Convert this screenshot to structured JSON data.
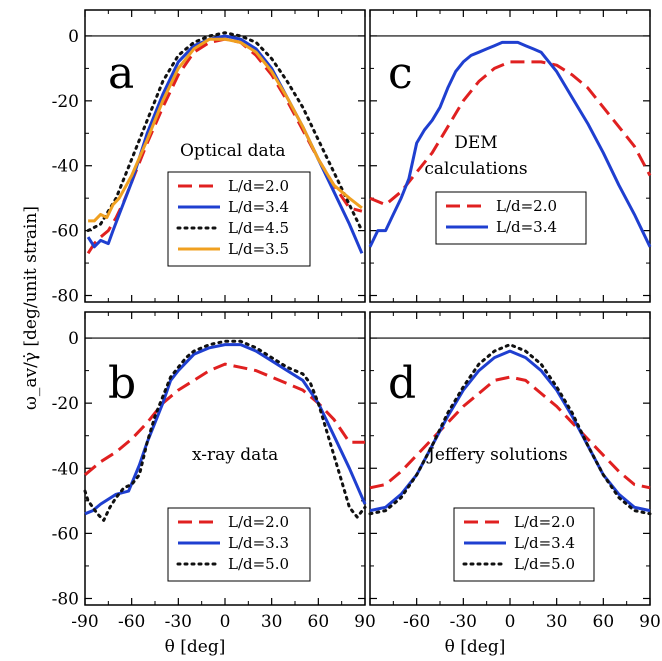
{
  "figure": {
    "ylabel": "ω_av/γ̇ [deg/unit strain]",
    "xlabel": "θ [deg]"
  },
  "styles": {
    "L/d=2.0": {
      "color": "#e02020",
      "dash": "14,7"
    },
    "L/d=3.4": {
      "color": "#1f3fd0",
      "dash": ""
    },
    "L/d=4.5": {
      "color": "#111111",
      "dash": "2,5"
    },
    "L/d=3.5": {
      "color": "#f0a020",
      "dash": ""
    },
    "L/d=3.3": {
      "color": "#1f3fd0",
      "dash": ""
    },
    "L/d=5.0": {
      "color": "#111111",
      "dash": "2,5"
    }
  },
  "chart_data": [
    {
      "type": "line",
      "panel": "a",
      "annotation": "Optical data",
      "xlim": [
        -90,
        90
      ],
      "ylim": [
        -82,
        8
      ],
      "xticks": [
        -90,
        -60,
        -30,
        0,
        30,
        60,
        90
      ],
      "yticks": [
        0,
        -20,
        -40,
        -60,
        -80
      ],
      "grid": false,
      "legend_position": "bottom-center",
      "series": [
        {
          "name": "L/d=2.0",
          "x": [
            -88,
            -84,
            -80,
            -75,
            -70,
            -65,
            -60,
            -50,
            -40,
            -30,
            -20,
            -10,
            0,
            10,
            20,
            30,
            40,
            50,
            60,
            70,
            80,
            88
          ],
          "y": [
            -67,
            -64,
            -62,
            -60,
            -56,
            -51,
            -45,
            -33,
            -22,
            -12,
            -5,
            -2,
            -1,
            -2,
            -6,
            -12,
            -20,
            -29,
            -38,
            -46,
            -53,
            -54
          ]
        },
        {
          "name": "L/d=3.4",
          "x": [
            -88,
            -84,
            -80,
            -75,
            -72,
            -68,
            -60,
            -50,
            -40,
            -30,
            -20,
            -10,
            0,
            10,
            20,
            30,
            40,
            50,
            60,
            70,
            80,
            88
          ],
          "y": [
            -62,
            -65,
            -63,
            -64,
            -60,
            -55,
            -45,
            -30,
            -18,
            -8,
            -3,
            -1,
            0,
            -1,
            -4,
            -10,
            -19,
            -28,
            -38,
            -48,
            -58,
            -67
          ]
        },
        {
          "name": "L/d=4.5",
          "x": [
            -88,
            -80,
            -70,
            -60,
            -50,
            -40,
            -30,
            -20,
            -10,
            0,
            10,
            20,
            30,
            40,
            50,
            60,
            70,
            80,
            88
          ],
          "y": [
            -60,
            -58,
            -50,
            -38,
            -26,
            -14,
            -6,
            -2,
            0,
            1,
            0,
            -2,
            -7,
            -14,
            -22,
            -32,
            -42,
            -52,
            -60
          ]
        },
        {
          "name": "L/d=3.5",
          "x": [
            -88,
            -84,
            -80,
            -76,
            -72,
            -68,
            -60,
            -50,
            -40,
            -30,
            -20,
            -10,
            0,
            10,
            20,
            30,
            40,
            50,
            60,
            70,
            80,
            88
          ],
          "y": [
            -57,
            -57,
            -55,
            -56,
            -52,
            -50,
            -43,
            -32,
            -20,
            -10,
            -4,
            -1,
            -1,
            -2,
            -5,
            -11,
            -19,
            -28,
            -38,
            -46,
            -50,
            -53
          ]
        }
      ]
    },
    {
      "type": "line",
      "panel": "c",
      "annotation_lines": [
        "DEM",
        "calculations"
      ],
      "xlim": [
        -90,
        90
      ],
      "ylim": [
        -82,
        8
      ],
      "xticks": [
        -90,
        -60,
        -30,
        0,
        30,
        60,
        90
      ],
      "yticks": [
        0,
        -20,
        -40,
        -60,
        -80
      ],
      "grid": false,
      "legend_position": "bottom-center",
      "series": [
        {
          "name": "L/d=2.0",
          "x": [
            -90,
            -80,
            -70,
            -60,
            -50,
            -40,
            -30,
            -20,
            -10,
            0,
            10,
            20,
            30,
            40,
            50,
            60,
            70,
            80,
            90
          ],
          "y": [
            -50,
            -52,
            -48,
            -42,
            -36,
            -28,
            -20,
            -14,
            -10,
            -8,
            -8,
            -8,
            -9,
            -12,
            -16,
            -22,
            -28,
            -34,
            -43
          ]
        },
        {
          "name": "L/d=3.4",
          "x": [
            -90,
            -85,
            -80,
            -75,
            -70,
            -65,
            -60,
            -55,
            -50,
            -45,
            -40,
            -35,
            -30,
            -25,
            -20,
            -15,
            -10,
            -5,
            0,
            5,
            10,
            15,
            20,
            25,
            30,
            40,
            50,
            60,
            70,
            80,
            90
          ],
          "y": [
            -65,
            -60,
            -60,
            -55,
            -50,
            -44,
            -33,
            -29,
            -26,
            -22,
            -16,
            -11,
            -8,
            -6,
            -5,
            -4,
            -3,
            -2,
            -2,
            -2,
            -3,
            -4,
            -5,
            -8,
            -11,
            -19,
            -27,
            -36,
            -46,
            -55,
            -65
          ]
        }
      ]
    },
    {
      "type": "line",
      "panel": "b",
      "annotation": "x-ray data",
      "xlim": [
        -90,
        90
      ],
      "ylim": [
        -82,
        8
      ],
      "xticks": [
        -90,
        -60,
        -30,
        0,
        30,
        60,
        90
      ],
      "yticks": [
        0,
        -20,
        -40,
        -60,
        -80
      ],
      "grid": false,
      "legend_position": "bottom-center",
      "series": [
        {
          "name": "L/d=2.0",
          "x": [
            -90,
            -80,
            -70,
            -60,
            -50,
            -40,
            -30,
            -20,
            -10,
            0,
            10,
            20,
            30,
            40,
            50,
            60,
            70,
            80,
            90
          ],
          "y": [
            -42,
            -38,
            -35,
            -31,
            -26,
            -20,
            -16,
            -13,
            -10,
            -8,
            -9,
            -10,
            -12,
            -14,
            -16,
            -20,
            -25,
            -32,
            -32
          ]
        },
        {
          "name": "L/d=3.3",
          "x": [
            -90,
            -85,
            -80,
            -70,
            -62,
            -55,
            -50,
            -45,
            -40,
            -35,
            -30,
            -20,
            -10,
            0,
            10,
            20,
            30,
            40,
            50,
            60,
            70,
            80,
            90
          ],
          "y": [
            -54,
            -53,
            -51,
            -48,
            -47,
            -39,
            -32,
            -26,
            -20,
            -13,
            -10,
            -5,
            -3,
            -2,
            -2,
            -4,
            -7,
            -10,
            -13,
            -20,
            -30,
            -40,
            -51
          ]
        },
        {
          "name": "L/d=5.0",
          "x": [
            -90,
            -88,
            -85,
            -82,
            -78,
            -74,
            -70,
            -65,
            -60,
            -55,
            -50,
            -45,
            -40,
            -35,
            -30,
            -25,
            -20,
            -10,
            0,
            10,
            20,
            30,
            40,
            50,
            55,
            60,
            65,
            70,
            75,
            80,
            85,
            90
          ],
          "y": [
            -47,
            -50,
            -52,
            -54,
            -56,
            -52,
            -49,
            -46,
            -45,
            -42,
            -32,
            -24,
            -18,
            -12,
            -9,
            -6,
            -4,
            -2,
            -1,
            -1,
            -3,
            -6,
            -9,
            -11,
            -14,
            -20,
            -28,
            -36,
            -44,
            -52,
            -55,
            -52
          ]
        }
      ]
    },
    {
      "type": "line",
      "panel": "d",
      "annotation": "Jeffery solutions",
      "xlim": [
        -90,
        90
      ],
      "ylim": [
        -82,
        8
      ],
      "xticks": [
        -90,
        -60,
        -30,
        0,
        30,
        60,
        90
      ],
      "yticks": [
        0,
        -20,
        -40,
        -60,
        -80
      ],
      "grid": false,
      "legend_position": "bottom-center",
      "series": [
        {
          "name": "L/d=2.0",
          "x": [
            -90,
            -80,
            -70,
            -60,
            -50,
            -40,
            -30,
            -20,
            -10,
            0,
            10,
            20,
            30,
            40,
            50,
            60,
            70,
            80,
            90
          ],
          "y": [
            -46,
            -45,
            -41,
            -36,
            -31,
            -26,
            -21,
            -17,
            -13,
            -12,
            -13,
            -17,
            -21,
            -26,
            -31,
            -36,
            -41,
            -45,
            -46
          ]
        },
        {
          "name": "L/d=3.4",
          "x": [
            -90,
            -80,
            -70,
            -60,
            -50,
            -40,
            -30,
            -20,
            -10,
            0,
            10,
            20,
            30,
            40,
            50,
            60,
            70,
            80,
            90
          ],
          "y": [
            -53,
            -52,
            -48,
            -42,
            -33,
            -24,
            -16,
            -10,
            -6,
            -4,
            -6,
            -10,
            -16,
            -24,
            -33,
            -42,
            -48,
            -52,
            -53
          ]
        },
        {
          "name": "L/d=5.0",
          "x": [
            -90,
            -80,
            -70,
            -60,
            -50,
            -40,
            -30,
            -20,
            -10,
            0,
            10,
            20,
            30,
            40,
            50,
            60,
            70,
            80,
            90
          ],
          "y": [
            -54,
            -53,
            -49,
            -42,
            -33,
            -23,
            -15,
            -8,
            -4,
            -2,
            -4,
            -8,
            -15,
            -23,
            -33,
            -42,
            -49,
            -53,
            -54
          ]
        }
      ]
    }
  ]
}
